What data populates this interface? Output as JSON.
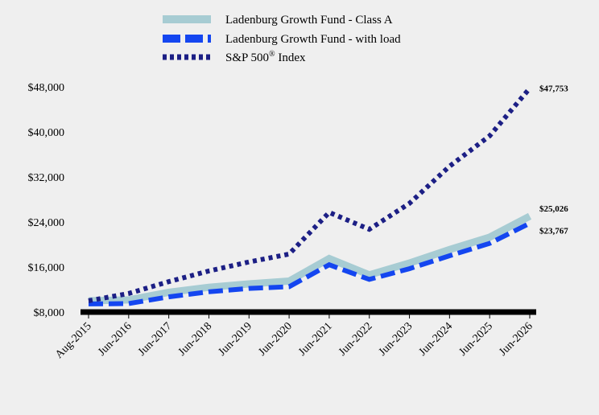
{
  "chart_data": {
    "type": "line",
    "title": "",
    "xlabel": "",
    "ylabel": "",
    "categories": [
      "Aug-2015",
      "Jun-2016",
      "Jun-2017",
      "Jun-2018",
      "Jun-2019",
      "Jun-2020",
      "Jun-2021",
      "Jun-2022",
      "Jun-2023",
      "Jun-2024",
      "Jun-2025",
      "Jun-2026"
    ],
    "ylim": [
      8000,
      48000
    ],
    "yticks": [
      8000,
      16000,
      24000,
      32000,
      40000,
      48000
    ],
    "ytick_labels": [
      "$8,000",
      "$16,000",
      "$24,000",
      "$32,000",
      "$40,000",
      "$48,000"
    ],
    "legend_position": "top",
    "grid": false,
    "series": [
      {
        "name": "Ladenburg Growth Fund - Class A",
        "color": "#a7ccd3",
        "style": "solid",
        "values": [
          10000,
          10150,
          11500,
          12400,
          13000,
          13500,
          17500,
          14600,
          16700,
          19100,
          21300,
          25026
        ],
        "end_label": "$25,026"
      },
      {
        "name": "Ladenburg Growth Fund - with load",
        "color": "#1446f0",
        "style": "dashed",
        "values": [
          9450,
          9500,
          10700,
          11600,
          12200,
          12500,
          16400,
          13800,
          15700,
          18000,
          20200,
          23767
        ],
        "end_label": "$23,767"
      },
      {
        "name": "S&P 500® Index",
        "legend_main": "S&P 500",
        "legend_sup": "®",
        "legend_tail": " Index",
        "color": "#1c1f85",
        "style": "dotted",
        "values": [
          10000,
          11300,
          13400,
          15300,
          16900,
          18300,
          25700,
          22700,
          27300,
          33900,
          39300,
          47753
        ],
        "end_label": "$47,753"
      }
    ]
  }
}
